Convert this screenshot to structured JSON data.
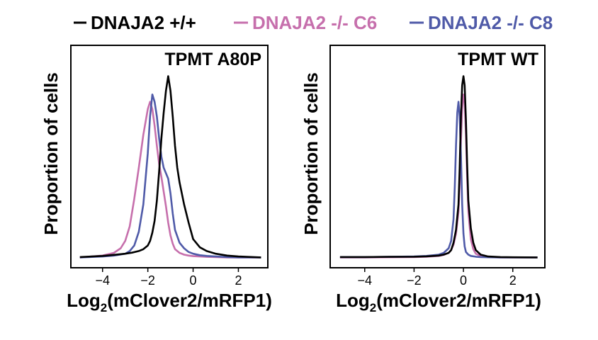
{
  "chart_data": [
    {
      "type": "line",
      "title": "TPMT A80P",
      "xlabel_main": "Log",
      "xlabel_sub": "2",
      "xlabel_rest": "(mClover2/mRFP1)",
      "ylabel": "Proportion of cells",
      "xlim": [
        -5.4,
        3.3
      ],
      "ylim": [
        0,
        1.06
      ],
      "x_ticks": [
        -4,
        -2,
        0,
        2
      ],
      "x_tick_labels": [
        "−4",
        "−2",
        "0",
        "2"
      ],
      "series": [
        {
          "name": "DNAJA2 +/+",
          "color": "#000000",
          "x": [
            -5,
            -4,
            -3.5,
            -3,
            -2.7,
            -2.4,
            -2.2,
            -2.0,
            -1.9,
            -1.8,
            -1.7,
            -1.6,
            -1.5,
            -1.4,
            -1.3,
            -1.2,
            -1.1,
            -1.0,
            -0.9,
            -0.8,
            -0.7,
            -0.6,
            -0.5,
            -0.4,
            -0.2,
            0.0,
            0.3,
            0.6,
            1.0,
            1.5,
            2.0,
            3.0
          ],
          "y": [
            0.012,
            0.018,
            0.024,
            0.03,
            0.036,
            0.045,
            0.055,
            0.075,
            0.1,
            0.145,
            0.21,
            0.32,
            0.48,
            0.66,
            0.8,
            0.92,
            1.0,
            0.92,
            0.78,
            0.62,
            0.5,
            0.42,
            0.36,
            0.3,
            0.2,
            0.11,
            0.065,
            0.045,
            0.03,
            0.02,
            0.015,
            0.01
          ]
        },
        {
          "name": "DNAJA2 -/- C6",
          "color": "#c66fac",
          "x": [
            -5,
            -4,
            -3.5,
            -3.2,
            -3.0,
            -2.8,
            -2.6,
            -2.4,
            -2.2,
            -2.0,
            -1.9,
            -1.8,
            -1.7,
            -1.6,
            -1.5,
            -1.4,
            -1.3,
            -1.2,
            -1.1,
            -1.0,
            -0.9,
            -0.8,
            -0.6,
            -0.4,
            -0.2,
            0.0,
            0.3,
            0.6,
            1.0,
            1.5,
            2.0,
            3.0
          ],
          "y": [
            0.01,
            0.02,
            0.035,
            0.06,
            0.1,
            0.18,
            0.33,
            0.5,
            0.68,
            0.82,
            0.86,
            0.82,
            0.73,
            0.62,
            0.52,
            0.45,
            0.37,
            0.29,
            0.2,
            0.13,
            0.085,
            0.055,
            0.035,
            0.025,
            0.02,
            0.017,
            0.015,
            0.013,
            0.012,
            0.01,
            0.01,
            0.01
          ]
        },
        {
          "name": "DNAJA2 -/- C8",
          "color": "#4f5aa8",
          "x": [
            -5,
            -4,
            -3.5,
            -3.0,
            -2.8,
            -2.6,
            -2.4,
            -2.2,
            -2.0,
            -1.9,
            -1.8,
            -1.7,
            -1.6,
            -1.5,
            -1.4,
            -1.3,
            -1.2,
            -1.1,
            -1.0,
            -0.9,
            -0.8,
            -0.6,
            -0.4,
            -0.2,
            0.0,
            0.3,
            0.6,
            1.0,
            1.5,
            2.0,
            3.0
          ],
          "y": [
            0.01,
            0.015,
            0.02,
            0.03,
            0.045,
            0.075,
            0.15,
            0.3,
            0.58,
            0.78,
            0.9,
            0.86,
            0.78,
            0.66,
            0.56,
            0.5,
            0.47,
            0.44,
            0.36,
            0.25,
            0.16,
            0.09,
            0.06,
            0.04,
            0.03,
            0.022,
            0.018,
            0.015,
            0.012,
            0.01,
            0.01
          ]
        }
      ]
    },
    {
      "type": "line",
      "title": "TPMT WT",
      "xlabel_main": "Log",
      "xlabel_sub": "2",
      "xlabel_rest": "(mClover2/mRFP1)",
      "ylabel": "Proportion of cells",
      "xlim": [
        -5.4,
        3.3
      ],
      "ylim": [
        0,
        1.06
      ],
      "x_ticks": [
        -4,
        -2,
        0,
        2
      ],
      "x_tick_labels": [
        "−4",
        "−2",
        "0",
        "2"
      ],
      "series": [
        {
          "name": "DNAJA2 +/+",
          "color": "#000000",
          "x": [
            -5,
            -4,
            -3,
            -2,
            -1.5,
            -1.0,
            -0.8,
            -0.6,
            -0.5,
            -0.4,
            -0.3,
            -0.2,
            -0.15,
            -0.1,
            -0.05,
            0.0,
            0.05,
            0.1,
            0.15,
            0.2,
            0.3,
            0.4,
            0.5,
            0.7,
            1.0,
            1.5,
            2.0,
            3.0
          ],
          "y": [
            0.012,
            0.012,
            0.013,
            0.014,
            0.016,
            0.02,
            0.025,
            0.035,
            0.05,
            0.09,
            0.16,
            0.3,
            0.5,
            0.78,
            0.95,
            1.0,
            0.95,
            0.76,
            0.52,
            0.32,
            0.17,
            0.09,
            0.05,
            0.025,
            0.015,
            0.012,
            0.011,
            0.01
          ]
        },
        {
          "name": "DNAJA2 -/- C6",
          "color": "#c66fac",
          "x": [
            -5,
            -4,
            -3,
            -2,
            -1.5,
            -1.0,
            -0.8,
            -0.6,
            -0.5,
            -0.4,
            -0.3,
            -0.2,
            -0.15,
            -0.1,
            -0.05,
            0.0,
            0.05,
            0.1,
            0.15,
            0.2,
            0.3,
            0.4,
            0.5,
            0.7,
            1.0,
            1.5,
            2.0,
            3.0
          ],
          "y": [
            0.01,
            0.01,
            0.011,
            0.012,
            0.014,
            0.018,
            0.024,
            0.035,
            0.05,
            0.08,
            0.14,
            0.26,
            0.42,
            0.65,
            0.82,
            0.9,
            0.86,
            0.68,
            0.45,
            0.26,
            0.11,
            0.055,
            0.03,
            0.018,
            0.012,
            0.01,
            0.01,
            0.01
          ]
        },
        {
          "name": "DNAJA2 -/- C8",
          "color": "#4f5aa8",
          "x": [
            -5,
            -4,
            -3,
            -2,
            -1.5,
            -1.0,
            -0.8,
            -0.6,
            -0.5,
            -0.4,
            -0.35,
            -0.3,
            -0.25,
            -0.2,
            -0.15,
            -0.1,
            -0.05,
            0.0,
            0.05,
            0.1,
            0.2,
            0.3,
            0.5,
            0.7,
            1.0,
            1.5,
            2.0,
            3.0
          ],
          "y": [
            0.012,
            0.012,
            0.013,
            0.015,
            0.018,
            0.025,
            0.035,
            0.06,
            0.1,
            0.22,
            0.4,
            0.62,
            0.8,
            0.86,
            0.78,
            0.56,
            0.3,
            0.14,
            0.07,
            0.04,
            0.025,
            0.018,
            0.014,
            0.012,
            0.011,
            0.01,
            0.01,
            0.01
          ]
        }
      ]
    }
  ]
}
